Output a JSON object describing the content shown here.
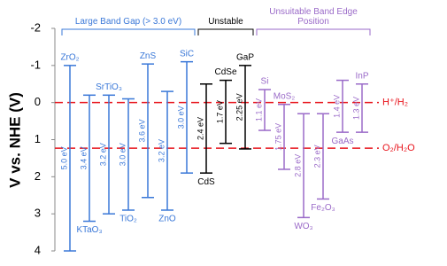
{
  "chart_data": {
    "type": "band-edge",
    "y_label": "V vs. NHE (V)",
    "ylim": [
      -2,
      4
    ],
    "yticks": [
      -2,
      -1,
      0,
      1,
      2,
      3,
      4
    ],
    "y_inverted": true,
    "reference_lines": [
      {
        "name": "H⁺/H₂",
        "value": 0,
        "color": "#e8141c"
      },
      {
        "name": "O₂/H₂O",
        "value": 1.23,
        "color": "#e8141c"
      }
    ],
    "groups": [
      {
        "name": "Large Band Gap (> 3.0 eV)",
        "color": "#3a78d8",
        "materials": [
          {
            "name": "ZrO₂",
            "cb": -1.0,
            "vb": 4.0,
            "gap": "5.0 eV",
            "label": "above"
          },
          {
            "name": "KTaO₃",
            "cb": -0.2,
            "vb": 3.2,
            "gap": "3.4 eV",
            "label": "below"
          },
          {
            "name": "SrTiO₃",
            "cb": -0.2,
            "vb": 3.0,
            "gap": "3.2 eV",
            "label": "above"
          },
          {
            "name": "TiO₂",
            "cb": -0.1,
            "vb": 2.9,
            "gap": "3.0 eV",
            "label": "below"
          },
          {
            "name": "ZnS",
            "cb": -1.04,
            "vb": 2.56,
            "gap": "3.6 eV",
            "label": "above"
          },
          {
            "name": "ZnO",
            "cb": -0.3,
            "vb": 2.9,
            "gap": "3.2 eV",
            "label": "below"
          },
          {
            "name": "SiC",
            "cb": -1.1,
            "vb": 1.9,
            "gap": "3.0 eV",
            "label": "above"
          }
        ]
      },
      {
        "name": "Unstable",
        "color": "#000000",
        "materials": [
          {
            "name": "CdS",
            "cb": -0.5,
            "vb": 1.9,
            "gap": "2.4 eV",
            "label": "below"
          },
          {
            "name": "CdSe",
            "cb": -0.6,
            "vb": 1.1,
            "gap": "1.7 eV",
            "label": "above"
          },
          {
            "name": "GaP",
            "cb": -1.0,
            "vb": 1.25,
            "gap": "2.25 eV",
            "label": "above"
          }
        ]
      },
      {
        "name": "Unsuitable Band Edge Position",
        "color": "#9a6ac8",
        "materials": [
          {
            "name": "Si",
            "cb": -0.35,
            "vb": 0.75,
            "gap": "1.1 eV",
            "label": "above"
          },
          {
            "name": "MoS₂",
            "cb": 0.05,
            "vb": 1.8,
            "gap": "1.75 eV",
            "label": "above"
          },
          {
            "name": "WO₃",
            "cb": 0.3,
            "vb": 3.1,
            "gap": "2.8 eV",
            "label": "below"
          },
          {
            "name": "Fe₂O₃",
            "cb": 0.3,
            "vb": 2.6,
            "gap": "2.3 eV",
            "label": "below"
          },
          {
            "name": "GaAs",
            "cb": -0.6,
            "vb": 0.8,
            "gap": "1.4 eV",
            "label": "below"
          },
          {
            "name": "InP",
            "cb": -0.5,
            "vb": 0.8,
            "gap": "1.3 eV",
            "label": "above"
          }
        ]
      }
    ]
  }
}
